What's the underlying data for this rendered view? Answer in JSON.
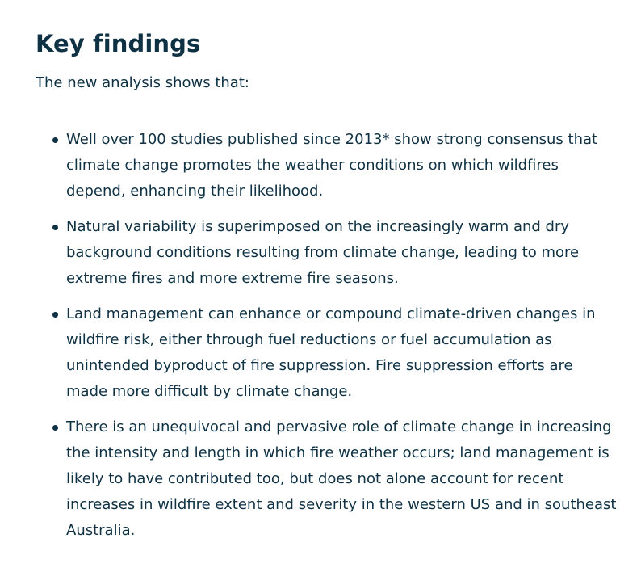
{
  "section": {
    "title": "Key findings",
    "intro": "The new analysis shows that:",
    "items": [
      {
        "text": "Well over 100 studies published since 2013* show strong consensus that climate change promotes the weather conditions on which wildfires depend, enhancing their likelihood."
      },
      {
        "text": "Natural variability is superimposed on the increasingly warm and dry background conditions resulting from climate change, leading to more extreme fires and more extreme fire seasons."
      },
      {
        "text": "Land management can enhance or compound climate-driven changes in wildfire risk, either through fuel reductions or fuel accumulation as unintended byproduct of fire suppression. Fire suppression efforts are made more difficult by climate change."
      },
      {
        "text": "There is an unequivocal and pervasive role of climate change in increasing the intensity and length in which fire weather occurs; land management is likely to have contributed too, but does not alone account for recent increases in wildfire extent and severity in the western US and in southeast Australia."
      }
    ]
  }
}
